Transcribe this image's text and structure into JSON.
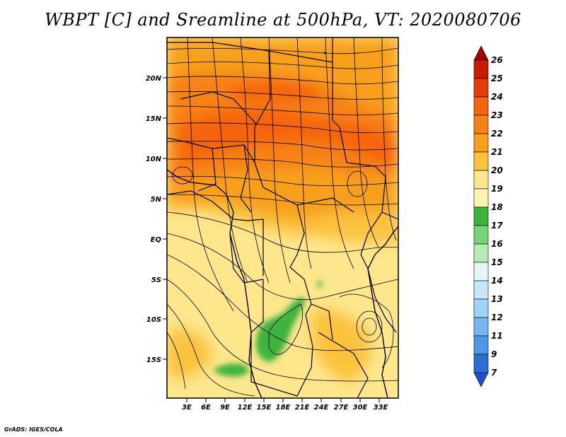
{
  "title": "WBPT [C] and Sreamline at 500hPa, VT: 2020080706",
  "credit": "GrADS: IGES/COLA",
  "lat_labels": [
    "20N",
    "15N",
    "10N",
    "5N",
    "EQ",
    "5S",
    "10S",
    "15S"
  ],
  "lon_labels": [
    "3E",
    "6E",
    "9E",
    "12E",
    "15E",
    "18E",
    "21E",
    "24E",
    "27E",
    "30E",
    "33E"
  ],
  "colorbar": {
    "labels": [
      "26",
      "25",
      "24",
      "23",
      "22",
      "21",
      "20",
      "19",
      "18",
      "17",
      "16",
      "15",
      "14",
      "13",
      "12",
      "11",
      "9",
      "7"
    ],
    "colors": [
      "#a50000",
      "#c81e00",
      "#e63c0a",
      "#f5640f",
      "#f78214",
      "#f8a01e",
      "#fbc23c",
      "#fde68c",
      "#fdf3b4",
      "#3cb43c",
      "#78d278",
      "#b4ebb4",
      "#e6f5f5",
      "#c8e6fa",
      "#a0d2fa",
      "#78b4f0",
      "#5096e6",
      "#2d6ed2",
      "#1e50c8"
    ]
  },
  "map": {
    "field": "wet-bulb potential temperature",
    "level": "500hPa",
    "valid_time": "2020080706",
    "lon_range": [
      0,
      36
    ],
    "lat_range": [
      -20,
      24.5
    ]
  }
}
